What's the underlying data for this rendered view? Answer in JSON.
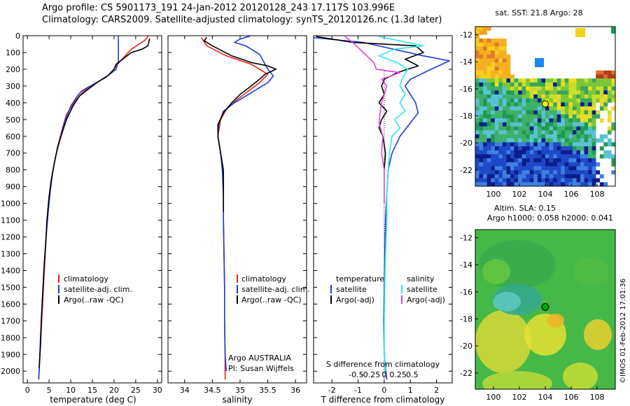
{
  "header": {
    "line1": "Argo profile: CS 5901173_191 24-Jan-2012 20120128_243 17.117S 103.996E",
    "line2": "Climatology: CARS2009. Satellite-adjusted climatology: synTS_20120126.nc (1.3d later)"
  },
  "footer": {
    "credit": "©IMOS 01-Feb-2012 17:01:36"
  },
  "colors": {
    "climatology": "#e8231c",
    "satellite": "#1f3bd6",
    "argo": "#000000",
    "satellite_salinity": "#2ee8e8",
    "argo_salinity_adj": "#e040e0"
  },
  "chart_data": [
    {
      "type": "line",
      "name": "temperature-panel",
      "xlabel": "temperature (deg C)",
      "ylabel": "",
      "xlim": [
        -1,
        31
      ],
      "ylim": [
        2070,
        0
      ],
      "x_ticks": [
        0,
        5,
        10,
        15,
        20,
        25,
        30
      ],
      "y_ticks": [
        0,
        100,
        200,
        300,
        400,
        500,
        600,
        700,
        800,
        900,
        1000,
        1100,
        1200,
        1300,
        1400,
        1500,
        1600,
        1700,
        1800,
        1900,
        2000
      ],
      "legend": {
        "placement": "lower-middle",
        "entries": [
          "climatology",
          "satellite-adj. clim.",
          "Argo(..raw -QC)"
        ]
      },
      "series": [
        {
          "name": "climatology",
          "color": "#e8231c",
          "points": [
            [
              28,
              0
            ],
            [
              27,
              30
            ],
            [
              24,
              80
            ],
            [
              21.5,
              150
            ],
            [
              19,
              230
            ],
            [
              16,
              280
            ],
            [
              13,
              330
            ],
            [
              11,
              390
            ],
            [
              9,
              470
            ],
            [
              8,
              560
            ],
            [
              7,
              660
            ],
            [
              6.2,
              760
            ],
            [
              5.5,
              860
            ],
            [
              5,
              960
            ],
            [
              4.6,
              1100
            ],
            [
              4.2,
              1250
            ],
            [
              3.9,
              1400
            ],
            [
              3.6,
              1550
            ],
            [
              3.3,
              1700
            ],
            [
              3.0,
              1850
            ],
            [
              2.8,
              1950
            ],
            [
              2.6,
              2050
            ]
          ]
        },
        {
          "name": "satellite-adj. clim.",
          "color": "#1f3bd6",
          "points": [
            [
              21,
              0
            ],
            [
              21,
              30
            ],
            [
              21,
              80
            ],
            [
              21,
              150
            ],
            [
              20.5,
              200
            ],
            [
              18,
              250
            ],
            [
              14.5,
              300
            ],
            [
              12.5,
              330
            ],
            [
              11.5,
              360
            ],
            [
              10,
              420
            ],
            [
              8.5,
              520
            ],
            [
              7.5,
              620
            ],
            [
              6.5,
              720
            ],
            [
              5.8,
              820
            ],
            [
              5.3,
              920
            ],
            [
              4.8,
              1050
            ],
            [
              4.3,
              1200
            ],
            [
              3.9,
              1350
            ],
            [
              3.6,
              1500
            ],
            [
              3.3,
              1650
            ],
            [
              3.0,
              1800
            ],
            [
              2.8,
              1950
            ],
            [
              2.6,
              2050
            ]
          ]
        },
        {
          "name": "Argo(..raw -QC)",
          "color": "#000000",
          "points": [
            [
              28,
              40
            ],
            [
              28.2,
              20
            ],
            [
              27.8,
              60
            ],
            [
              26.5,
              80
            ],
            [
              24,
              100
            ],
            [
              22,
              140
            ],
            [
              20.5,
              170
            ],
            [
              20,
              200
            ],
            [
              18.5,
              240
            ],
            [
              16,
              280
            ],
            [
              14,
              320
            ],
            [
              12,
              360
            ],
            [
              10.5,
              420
            ],
            [
              9,
              500
            ],
            [
              8,
              580
            ],
            [
              7,
              660
            ],
            [
              6.2,
              760
            ],
            [
              5.5,
              860
            ],
            [
              5,
              960
            ],
            [
              4.5,
              1100
            ],
            [
              4.2,
              1250
            ],
            [
              3.8,
              1400
            ],
            [
              3.5,
              1550
            ],
            [
              3.2,
              1700
            ],
            [
              3.0,
              1850
            ],
            [
              2.7,
              1980
            ]
          ]
        }
      ]
    },
    {
      "type": "line",
      "name": "salinity-panel",
      "xlabel": "salinity",
      "ylabel": "",
      "xlim": [
        33.7,
        36.2
      ],
      "ylim": [
        2070,
        0
      ],
      "x_ticks": [
        34,
        34.5,
        35,
        35.5,
        36
      ],
      "legend": {
        "placement": "lower-middle",
        "entries": [
          "climatology",
          "satellite-adj. clim.",
          "Argo(..raw -QC)"
        ]
      },
      "annotation": [
        "Argo AUSTRALIA",
        "PI: Susan Wijffels"
      ],
      "series": [
        {
          "name": "climatology",
          "color": "#e8231c",
          "points": [
            [
              34.3,
              10
            ],
            [
              34.4,
              60
            ],
            [
              34.75,
              120
            ],
            [
              35.2,
              170
            ],
            [
              35.5,
              230
            ],
            [
              35.35,
              280
            ],
            [
              35.15,
              330
            ],
            [
              34.95,
              380
            ],
            [
              34.75,
              440
            ],
            [
              34.65,
              500
            ],
            [
              34.6,
              600
            ],
            [
              34.65,
              700
            ],
            [
              34.68,
              800
            ],
            [
              34.7,
              950
            ],
            [
              34.7,
              1100
            ],
            [
              34.71,
              1300
            ],
            [
              34.72,
              1500
            ],
            [
              34.72,
              1700
            ],
            [
              34.73,
              1900
            ],
            [
              34.73,
              2050
            ]
          ]
        },
        {
          "name": "satellite-adj. clim.",
          "color": "#1f3bd6",
          "points": [
            [
              35.2,
              0
            ],
            [
              35,
              20
            ],
            [
              34.9,
              40
            ],
            [
              35.1,
              60
            ],
            [
              35.2,
              80
            ],
            [
              35.35,
              110
            ],
            [
              35.5,
              200
            ],
            [
              35.6,
              240
            ],
            [
              35.5,
              280
            ],
            [
              35.3,
              320
            ],
            [
              35.1,
              360
            ],
            [
              34.9,
              400
            ],
            [
              34.7,
              450
            ],
            [
              34.62,
              520
            ],
            [
              34.6,
              600
            ],
            [
              34.65,
              700
            ],
            [
              34.68,
              800
            ],
            [
              34.7,
              950
            ],
            [
              34.7,
              1100
            ],
            [
              34.71,
              1300
            ],
            [
              34.72,
              1500
            ],
            [
              34.72,
              1700
            ],
            [
              34.73,
              1900
            ],
            [
              34.75,
              2000
            ]
          ]
        },
        {
          "name": "Argo(..raw -QC)",
          "color": "#000000",
          "points": [
            [
              34.4,
              10
            ],
            [
              34.35,
              30
            ],
            [
              34.5,
              60
            ],
            [
              34.85,
              120
            ],
            [
              35.2,
              160
            ],
            [
              35.5,
              180
            ],
            [
              35.65,
              200
            ],
            [
              35.45,
              230
            ],
            [
              35.35,
              260
            ],
            [
              35.2,
              300
            ],
            [
              35,
              350
            ],
            [
              34.85,
              400
            ],
            [
              34.7,
              460
            ],
            [
              34.6,
              530
            ],
            [
              34.6,
              600
            ],
            [
              34.65,
              700
            ],
            [
              34.7,
              800
            ],
            [
              34.7,
              950
            ],
            [
              34.7,
              1050
            ]
          ]
        }
      ]
    },
    {
      "type": "line",
      "name": "difference-panel",
      "xlabel": "T difference from climatology",
      "top_label": "S difference from climatology",
      "xlim": [
        -2.7,
        2.6
      ],
      "ylim": [
        2070,
        0
      ],
      "x_ticks": [
        -2,
        -1,
        0,
        1,
        2
      ],
      "x_ticks_top": [
        "-0.5",
        "-0.25",
        "0",
        "0.25",
        "0.5"
      ],
      "legend": {
        "placement": "lower-middle",
        "temperature_title": "temperature",
        "salinity_title": "salinity",
        "entries": [
          "satellite",
          "Argo(-adj)",
          "satellite",
          "Argo(-adj)"
        ]
      },
      "series": [
        {
          "name": "temperature satellite",
          "color": "#1f3bd6",
          "points": [
            [
              -2.8,
              10
            ],
            [
              -0.8,
              40
            ],
            [
              1.5,
              120
            ],
            [
              2.5,
              150
            ],
            [
              1.8,
              200
            ],
            [
              1.0,
              260
            ],
            [
              0.8,
              300
            ],
            [
              1.0,
              350
            ],
            [
              1.2,
              400
            ],
            [
              1.3,
              460
            ],
            [
              1.0,
              520
            ],
            [
              0.6,
              600
            ],
            [
              0.3,
              700
            ],
            [
              0.15,
              800
            ],
            [
              0.1,
              950
            ],
            [
              0.05,
              1100
            ],
            [
              0.02,
              1300
            ],
            [
              0.0,
              1500
            ],
            [
              -0.02,
              1700
            ],
            [
              0.0,
              1900
            ],
            [
              0.1,
              2050
            ]
          ]
        },
        {
          "name": "temperature Argo(-adj)",
          "color": "#000000",
          "points": [
            [
              -2.6,
              5
            ],
            [
              -1.2,
              40
            ],
            [
              1.2,
              60
            ],
            [
              1.5,
              100
            ],
            [
              0.8,
              140
            ],
            [
              1.3,
              180
            ],
            [
              0.5,
              220
            ],
            [
              0.0,
              260
            ],
            [
              -0.1,
              300
            ],
            [
              0.0,
              350
            ],
            [
              -0.2,
              400
            ],
            [
              0.1,
              450
            ],
            [
              -0.1,
              500
            ],
            [
              -0.2,
              550
            ],
            [
              -0.05,
              600
            ],
            [
              0.05,
              700
            ],
            [
              0.0,
              800
            ]
          ]
        },
        {
          "name": "salinity satellite",
          "color": "#2ee8e8",
          "points": [
            [
              -0.2,
              5
            ],
            [
              1.5,
              60
            ],
            [
              0.4,
              80
            ],
            [
              -0.2,
              120
            ],
            [
              0.5,
              160
            ],
            [
              0.9,
              200
            ],
            [
              0.7,
              250
            ],
            [
              0.6,
              300
            ],
            [
              0.8,
              350
            ],
            [
              0.6,
              400
            ],
            [
              0.8,
              450
            ],
            [
              0.4,
              500
            ],
            [
              0.6,
              550
            ],
            [
              0.3,
              600
            ],
            [
              0.2,
              700
            ],
            [
              0.15,
              800
            ],
            [
              0.1,
              950
            ],
            [
              0.1,
              1100
            ],
            [
              0.05,
              1300
            ],
            [
              0.02,
              1500
            ],
            [
              0.0,
              1700
            ],
            [
              0.0,
              1900
            ],
            [
              0.05,
              2000
            ]
          ]
        },
        {
          "name": "salinity Argo(-adj)",
          "color": "#e040e0",
          "points": [
            [
              -1.5,
              5
            ],
            [
              -1.2,
              40
            ],
            [
              -0.8,
              100
            ],
            [
              -0.4,
              160
            ],
            [
              -0.3,
              200
            ],
            [
              0.6,
              220
            ],
            [
              -0.1,
              260
            ],
            [
              0.1,
              300
            ],
            [
              0.0,
              350
            ],
            [
              -0.1,
              400
            ],
            [
              -0.15,
              450
            ],
            [
              -0.2,
              520
            ],
            [
              -0.05,
              600
            ],
            [
              -0.1,
              700
            ],
            [
              0.0,
              800
            ],
            [
              0.0,
              1000
            ]
          ]
        }
      ]
    },
    {
      "type": "heatmap",
      "name": "sst-map",
      "title": "sat. SST: 21.8 Argo: 28",
      "x_ticks": [
        100,
        102,
        104,
        106,
        108
      ],
      "y_ticks": [
        -12,
        -14,
        -16,
        -18,
        -20,
        -22
      ],
      "xlim": [
        98.6,
        109.4
      ],
      "ylim": [
        -23.2,
        -11.4
      ],
      "marker": {
        "lon": 103.996,
        "lat": -17.117,
        "color": "#ffff00"
      }
    },
    {
      "type": "heatmap",
      "name": "sla-map",
      "title_line1": "Altim. SLA: 0.15",
      "title_line2": "Argo h1000: 0.058 h2000: 0.041",
      "x_ticks": [
        100,
        102,
        104,
        106,
        108
      ],
      "y_ticks": [
        -12,
        -14,
        -16,
        -18,
        -20,
        -22
      ],
      "xlim": [
        98.6,
        109.4
      ],
      "ylim": [
        -23.2,
        -11.4
      ],
      "marker": {
        "lon": 103.996,
        "lat": -17.117,
        "color": "#00aa00"
      }
    }
  ]
}
